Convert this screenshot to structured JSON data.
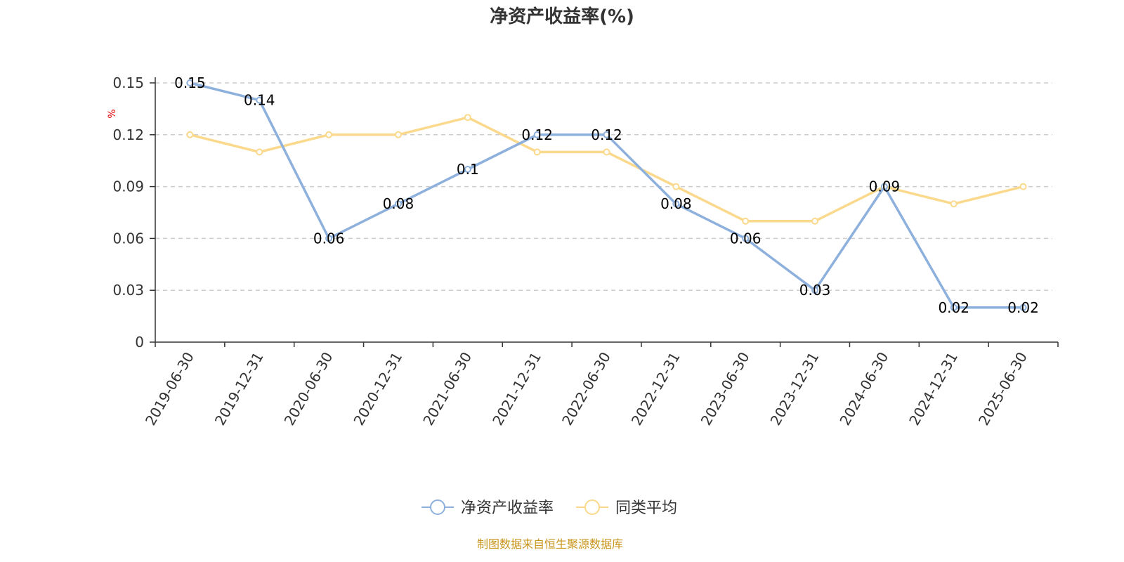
{
  "chart_data": {
    "type": "line",
    "title": "净资产收益率(%)",
    "unit": "%",
    "categories": [
      "2019-06-30",
      "2019-12-31",
      "2020-06-30",
      "2020-12-31",
      "2021-06-30",
      "2021-12-31",
      "2022-06-30",
      "2022-12-31",
      "2023-06-30",
      "2023-12-31",
      "2024-06-30",
      "2024-12-31",
      "2025-06-30"
    ],
    "series": [
      {
        "name": "净资产收益率",
        "color": "#8eb0dc",
        "values": [
          0.15,
          0.14,
          0.06,
          0.08,
          0.1,
          0.12,
          0.12,
          0.08,
          0.06,
          0.03,
          0.09,
          0.02,
          0.02
        ],
        "labels": [
          "0.15",
          "0.14",
          "0.06",
          "0.08",
          "0.1",
          "0.12",
          "0.12",
          "0.08",
          "0.06",
          "0.03",
          "0.09",
          "0.02",
          "0.02"
        ]
      },
      {
        "name": "同类平均",
        "color": "#fad98c",
        "values": [
          0.12,
          0.11,
          0.12,
          0.12,
          0.13,
          0.11,
          0.11,
          0.09,
          0.07,
          0.07,
          0.09,
          0.08,
          0.09
        ]
      }
    ],
    "ylim": [
      0,
      0.15
    ],
    "yticks": [
      "0",
      "0.03",
      "0.06",
      "0.09",
      "0.12",
      "0.15"
    ],
    "grid": true,
    "legend_position": "bottom"
  },
  "footer": "制图数据来自恒生聚源数据库"
}
